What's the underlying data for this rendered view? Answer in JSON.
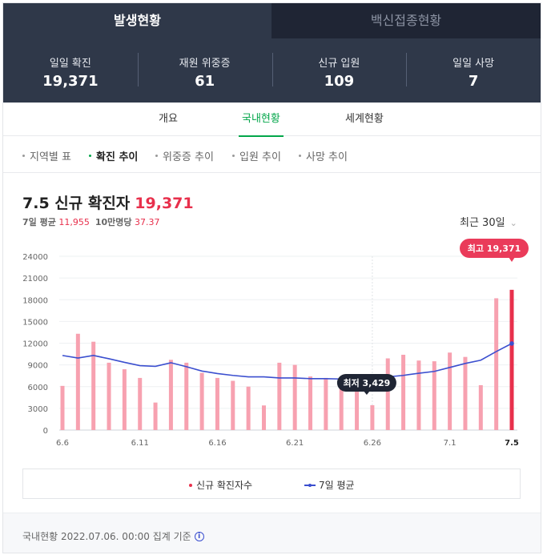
{
  "tabs": {
    "active": "발생현황",
    "inactive": "백신접종현황"
  },
  "stats": [
    {
      "label": "일일 확진",
      "value": "19,371"
    },
    {
      "label": "재원 위중증",
      "value": "61"
    },
    {
      "label": "신규 입원",
      "value": "109"
    },
    {
      "label": "일일 사망",
      "value": "7"
    }
  ],
  "subtabs": {
    "overview": "개요",
    "domestic": "국내현황",
    "world": "세계현황"
  },
  "filters": {
    "region_table": "지역별 표",
    "confirmed_trend": "확진 추이",
    "critical_trend": "위중증 추이",
    "hospital_trend": "입원 추이",
    "death_trend": "사망 추이"
  },
  "headline": {
    "title": "7.5 신규 확진자",
    "count": "19,371"
  },
  "subinfo": {
    "avg7_label": "7일 평균",
    "avg7_value": "11,955",
    "per100k_label": "10만명당",
    "per100k_value": "37.37"
  },
  "range_select": {
    "label": "최근 30일",
    "icon": "chevron-down-icon"
  },
  "legend": {
    "bars": "신규 확진자수",
    "line": "7일 평균"
  },
  "footer": {
    "text": "국내현황 2022.07.06. 00:00 집계 기준",
    "icon": "info-icon"
  },
  "colors": {
    "bar": "#f7a1b0",
    "bar_highlight": "#e8304c",
    "line": "#3b4fcf",
    "green": "#03a64a",
    "dark": "#2f3849"
  },
  "chart_data": {
    "type": "bar",
    "title": "7.5 신규 확진자",
    "categories": [
      "6.6",
      "6.7",
      "6.8",
      "6.9",
      "6.10",
      "6.11",
      "6.12",
      "6.13",
      "6.14",
      "6.15",
      "6.16",
      "6.17",
      "6.18",
      "6.19",
      "6.20",
      "6.21",
      "6.22",
      "6.23",
      "6.24",
      "6.25",
      "6.26",
      "6.27",
      "6.28",
      "6.29",
      "6.30",
      "7.1",
      "7.2",
      "7.3",
      "7.4",
      "7.5"
    ],
    "tick_labels": [
      "6.6",
      "6.11",
      "6.16",
      "6.21",
      "6.26",
      "7.1",
      "7.5"
    ],
    "y_ticks": [
      "0",
      "3000",
      "6000",
      "9000",
      "12000",
      "15000",
      "18000",
      "21000",
      "24000"
    ],
    "ylim": [
      0,
      24000
    ],
    "series": [
      {
        "name": "신규 확진자수",
        "type": "bar",
        "values": [
          6100,
          13300,
          12200,
          9300,
          8400,
          7200,
          3800,
          9700,
          9300,
          7900,
          7200,
          6800,
          6000,
          3400,
          9300,
          9000,
          7400,
          7200,
          6800,
          6200,
          3429,
          9900,
          10400,
          9600,
          9500,
          10700,
          10100,
          6200,
          18200,
          19371
        ]
      },
      {
        "name": "7일 평균",
        "type": "line",
        "values": [
          10300,
          9950,
          10300,
          9850,
          9350,
          8900,
          8800,
          9300,
          8750,
          8150,
          7800,
          7550,
          7350,
          7350,
          7200,
          7200,
          7100,
          7100,
          7050,
          7100,
          7150,
          7350,
          7550,
          7850,
          8100,
          8650,
          9200,
          9650,
          10850,
          11955
        ]
      }
    ],
    "annotations": [
      {
        "label": "최고",
        "value": "19,371",
        "category": "7.5"
      },
      {
        "label": "최저",
        "value": "3,429",
        "category": "6.26"
      }
    ]
  }
}
